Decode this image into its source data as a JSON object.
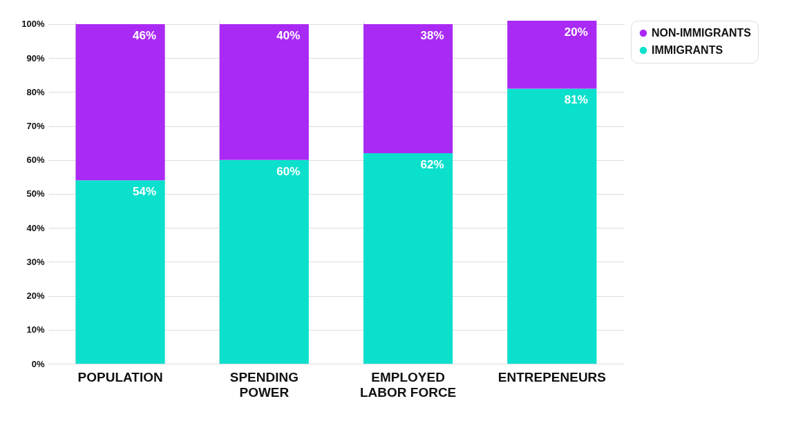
{
  "chart_data": {
    "type": "bar",
    "stacked": true,
    "categories": [
      "POPULATION",
      "SPENDING POWER",
      "EMPLOYED LABOR FORCE",
      "ENTREPENEURS"
    ],
    "series": [
      {
        "name": "IMMIGRANTS",
        "color": "#0be0cc",
        "values": [
          54,
          60,
          62,
          81
        ],
        "value_labels": [
          "54%",
          "60%",
          "62%",
          "81%"
        ]
      },
      {
        "name": "NON-IMMIGRANTS",
        "color": "#aa2af5",
        "values": [
          46,
          40,
          38,
          20
        ],
        "value_labels": [
          "46%",
          "40%",
          "38%",
          "20%"
        ]
      }
    ],
    "ylim": [
      0,
      101
    ],
    "yticks": [
      {
        "value": 0,
        "label": "0%"
      },
      {
        "value": 10,
        "label": "10%"
      },
      {
        "value": 20,
        "label": "20%"
      },
      {
        "value": 30,
        "label": "30%"
      },
      {
        "value": 40,
        "label": "40%"
      },
      {
        "value": 50,
        "label": "50%"
      },
      {
        "value": 60,
        "label": "60%"
      },
      {
        "value": 70,
        "label": "70%"
      },
      {
        "value": 80,
        "label": "80%"
      },
      {
        "value": 90,
        "label": "90%"
      },
      {
        "value": 100,
        "label": "100%"
      }
    ],
    "grid": true,
    "legend": "top right"
  }
}
